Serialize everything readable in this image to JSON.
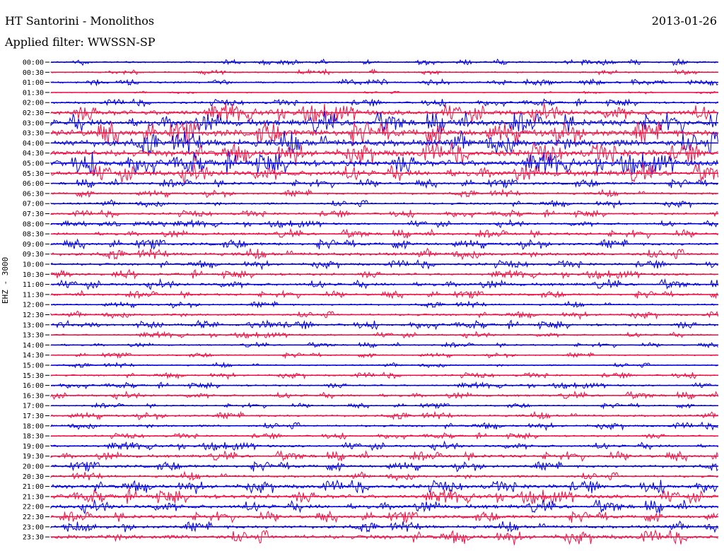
{
  "header": {
    "station": "HT Santorini - Monolithos",
    "date": "2013-01-26",
    "filter": "Applied filter: WWSSN-SP"
  },
  "channel_label": "EHZ - 3000",
  "colors": {
    "trace_a": "#0000dd",
    "trace_b": "#ee1144",
    "background": "#ffffff"
  },
  "chart_data": {
    "type": "line",
    "title": "HT Santorini - Monolithos",
    "subtitle": "Applied filter: WWSSN-SP",
    "ylabel": "EHZ - 3000",
    "xlabel": "",
    "grid": false,
    "legend": "none",
    "y_tick_labels": [
      "00:00",
      "00:30",
      "01:00",
      "01:30",
      "02:00",
      "02:30",
      "03:00",
      "03:30",
      "04:00",
      "04:30",
      "05:00",
      "05:30",
      "06:00",
      "06:30",
      "07:00",
      "07:30",
      "08:00",
      "08:30",
      "09:00",
      "09:30",
      "10:00",
      "10:30",
      "11:00",
      "11:30",
      "12:00",
      "12:30",
      "13:00",
      "13:30",
      "14:00",
      "14:30",
      "15:00",
      "15:30",
      "16:00",
      "16:30",
      "17:00",
      "17:30",
      "18:00",
      "18:30",
      "19:00",
      "19:30",
      "20:00",
      "20:30",
      "21:00",
      "21:30",
      "22:00",
      "22:30",
      "23:00",
      "23:30"
    ],
    "series": [
      {
        "name": "",
        "values": [
          0.25,
          0.2,
          0.25,
          0.1,
          0.3,
          0.8,
          0.9,
          1.0,
          1.0,
          0.95,
          0.95,
          0.8,
          0.35,
          0.3,
          0.3,
          0.3,
          0.3,
          0.35,
          0.4,
          0.45,
          0.35,
          0.35,
          0.4,
          0.3,
          0.25,
          0.3,
          0.35,
          0.25,
          0.2,
          0.2,
          0.2,
          0.25,
          0.25,
          0.3,
          0.2,
          0.3,
          0.3,
          0.25,
          0.35,
          0.4,
          0.4,
          0.35,
          0.55,
          0.6,
          0.55,
          0.45,
          0.45,
          0.6
        ]
      }
    ]
  }
}
